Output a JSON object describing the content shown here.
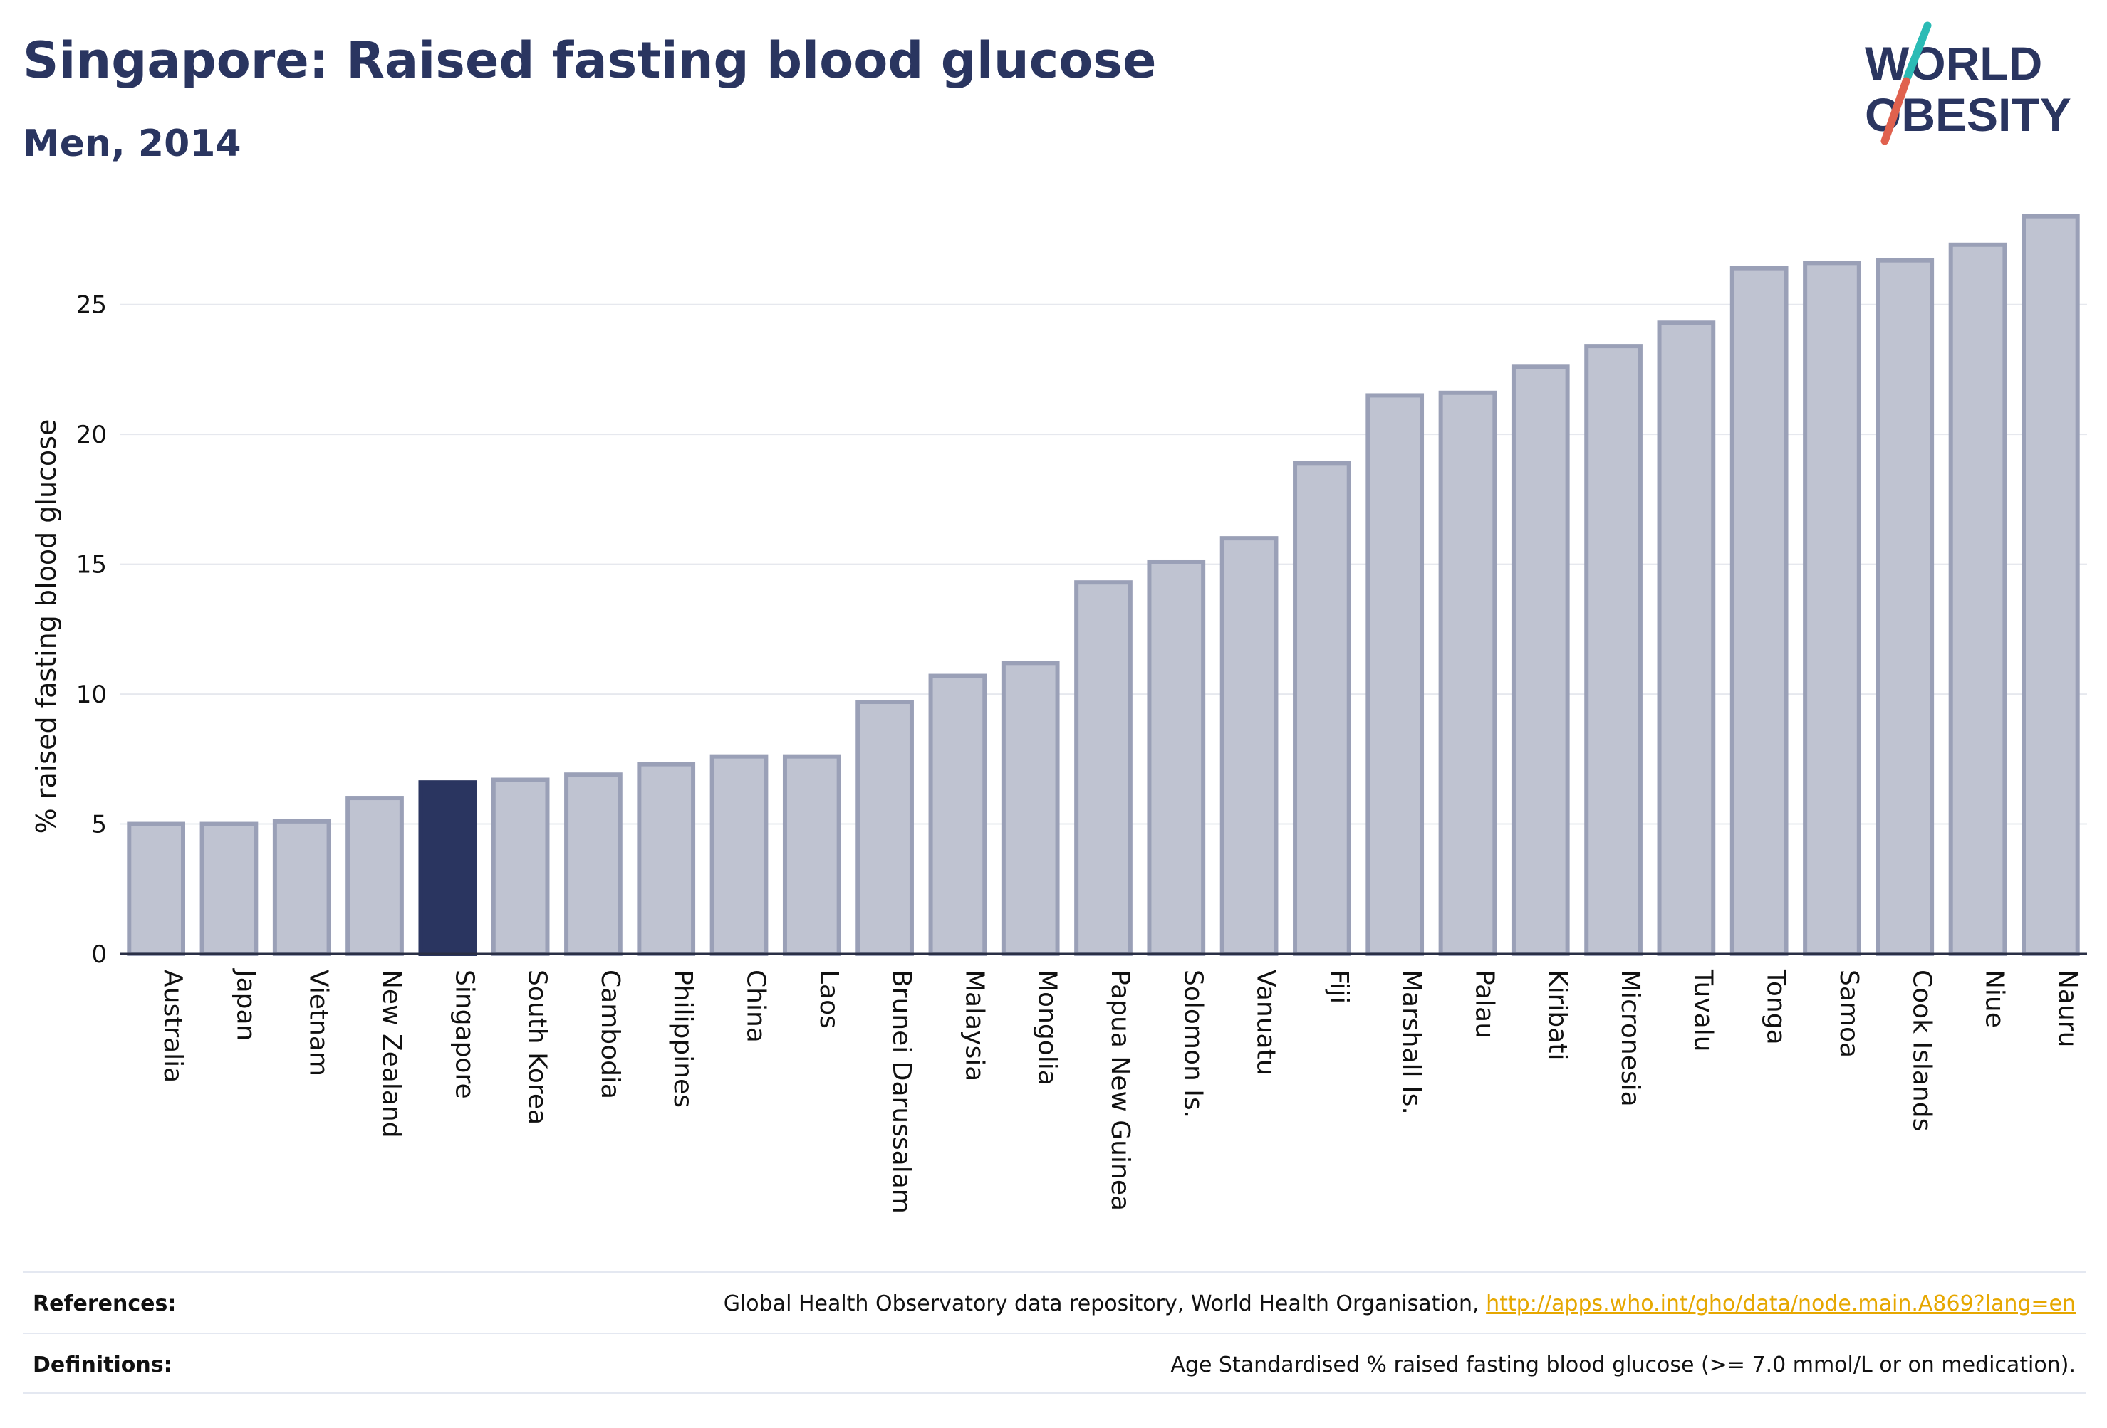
{
  "header": {
    "title": "Singapore: Raised fasting blood glucose",
    "subtitle": "Men, 2014"
  },
  "logo": {
    "line1": "WORLD",
    "line2": "OBESITY",
    "accent_colors": [
      "#2bbbb5",
      "#e0614e"
    ]
  },
  "colors": {
    "bar_fill": "#bfc3d1",
    "bar_stroke": "#9aa0b7",
    "highlight": "#2a3560",
    "grid": "#e6e8ee",
    "axis": "#2a2f45"
  },
  "chart_data": {
    "type": "bar",
    "title": "Singapore: Raised fasting blood glucose",
    "subtitle": "Men, 2014",
    "xlabel": "",
    "ylabel": "% raised fasting blood glucose",
    "ylim": [
      0,
      28.5
    ],
    "yticks": [
      0,
      5,
      10,
      15,
      20,
      25
    ],
    "grid": true,
    "highlight": "Singapore",
    "categories": [
      "Australia",
      "Japan",
      "Vietnam",
      "New Zealand",
      "Singapore",
      "South Korea",
      "Cambodia",
      "Philippines",
      "China",
      "Laos",
      "Brunei Darussalam",
      "Malaysia",
      "Mongolia",
      "Papua New Guinea",
      "Solomon Is.",
      "Vanuatu",
      "Fiji",
      "Marshall Is.",
      "Palau",
      "Kiribati",
      "Micronesia",
      "Tuvalu",
      "Tonga",
      "Samoa",
      "Cook Islands",
      "Niue",
      "Nauru"
    ],
    "values": [
      5.0,
      5.0,
      5.1,
      6.0,
      6.6,
      6.7,
      6.9,
      7.3,
      7.6,
      7.6,
      9.7,
      10.7,
      11.2,
      14.3,
      15.1,
      16.0,
      18.9,
      21.5,
      21.6,
      22.6,
      23.4,
      24.3,
      26.4,
      26.6,
      26.7,
      27.3,
      28.4
    ]
  },
  "footer": {
    "references_label": "References:",
    "references_text": "Global Health Observatory data repository, World Health Organisation,",
    "references_link": "http://apps.who.int/gho/data/node.main.A869?lang=en",
    "definitions_label": "Definitions:",
    "definitions_text": "Age Standardised % raised fasting blood glucose (>= 7.0 mmol/L or on medication)."
  }
}
